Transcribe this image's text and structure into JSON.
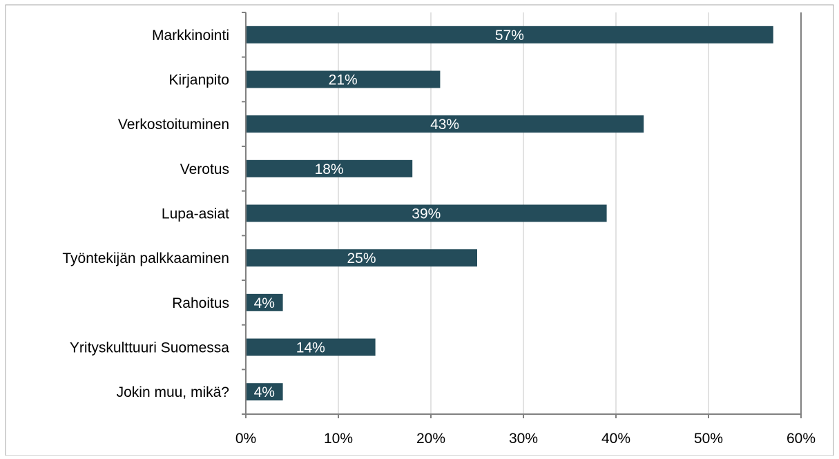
{
  "chart_data": {
    "type": "bar",
    "orientation": "horizontal",
    "title": "",
    "xlabel": "",
    "ylabel": "",
    "categories": [
      "Markkinointi",
      "Kirjanpito",
      "Verkostoituminen",
      "Verotus",
      "Lupa-asiat",
      "Työntekijän palkkaaminen",
      "Rahoitus",
      "Yrityskulttuuri Suomessa",
      "Jokin muu, mikä?"
    ],
    "values": [
      57,
      21,
      43,
      18,
      39,
      25,
      4,
      14,
      4
    ],
    "value_labels": [
      "57%",
      "21%",
      "43%",
      "18%",
      "39%",
      "25%",
      "4%",
      "14%",
      "4%"
    ],
    "xlim": [
      0,
      60
    ],
    "x_ticks": [
      0,
      10,
      20,
      30,
      40,
      50,
      60
    ],
    "x_tick_labels": [
      "0%",
      "10%",
      "20%",
      "30%",
      "40%",
      "50%",
      "60%"
    ],
    "grid": true,
    "legend": "none",
    "colors": {
      "bar": "#244c5a",
      "bar_label": "#ffffff",
      "gridline": "#d9d9d9",
      "axis": "#808080",
      "frame": "#a6a6a6",
      "text": "#000000"
    }
  }
}
